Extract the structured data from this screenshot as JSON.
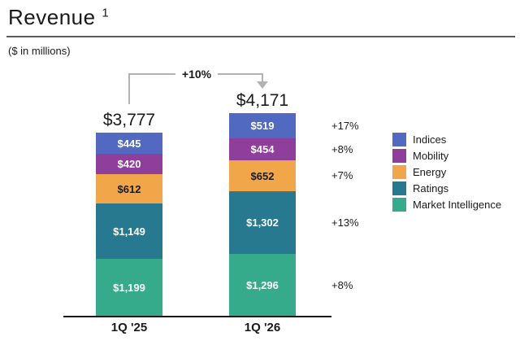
{
  "header": {
    "title": "Revenue",
    "title_superscript": "1",
    "subtitle": "($ in millions)"
  },
  "chart_data": {
    "type": "bar",
    "stacked": true,
    "categories": [
      "1Q '25",
      "1Q '26"
    ],
    "totals": [
      "$3,777",
      "$4,171"
    ],
    "total_change": "+10%",
    "series": [
      {
        "name": "Indices",
        "color": "#5169c1",
        "text_color": "#ffffff",
        "values": [
          445,
          519
        ],
        "value_labels": [
          "$445",
          "$519"
        ],
        "change": "+17%"
      },
      {
        "name": "Mobility",
        "color": "#8f3f9b",
        "text_color": "#ffffff",
        "values": [
          420,
          454
        ],
        "value_labels": [
          "$420",
          "$454"
        ],
        "change": "+8%"
      },
      {
        "name": "Energy",
        "color": "#f2a64a",
        "text_color": "#1a1a1a",
        "values": [
          612,
          652
        ],
        "value_labels": [
          "$612",
          "$652"
        ],
        "change": "+7%"
      },
      {
        "name": "Ratings",
        "color": "#26798f",
        "text_color": "#ffffff",
        "values": [
          1149,
          1302
        ],
        "value_labels": [
          "$1,149",
          "$1,302"
        ],
        "change": "+13%"
      },
      {
        "name": "Market Intelligence",
        "color": "#36ab8b",
        "text_color": "#ffffff",
        "values": [
          1199,
          1296
        ],
        "value_labels": [
          "$1,199",
          "$1,296"
        ],
        "change": "+8%"
      }
    ],
    "legend": [
      "Indices",
      "Mobility",
      "Energy",
      "Ratings",
      "Market Intelligence"
    ],
    "legend_position": "right",
    "grid": false,
    "accent_colors": {
      "arrow": "#b3b3b3",
      "rule": "#595959",
      "axis": "#1a1a1a"
    }
  }
}
